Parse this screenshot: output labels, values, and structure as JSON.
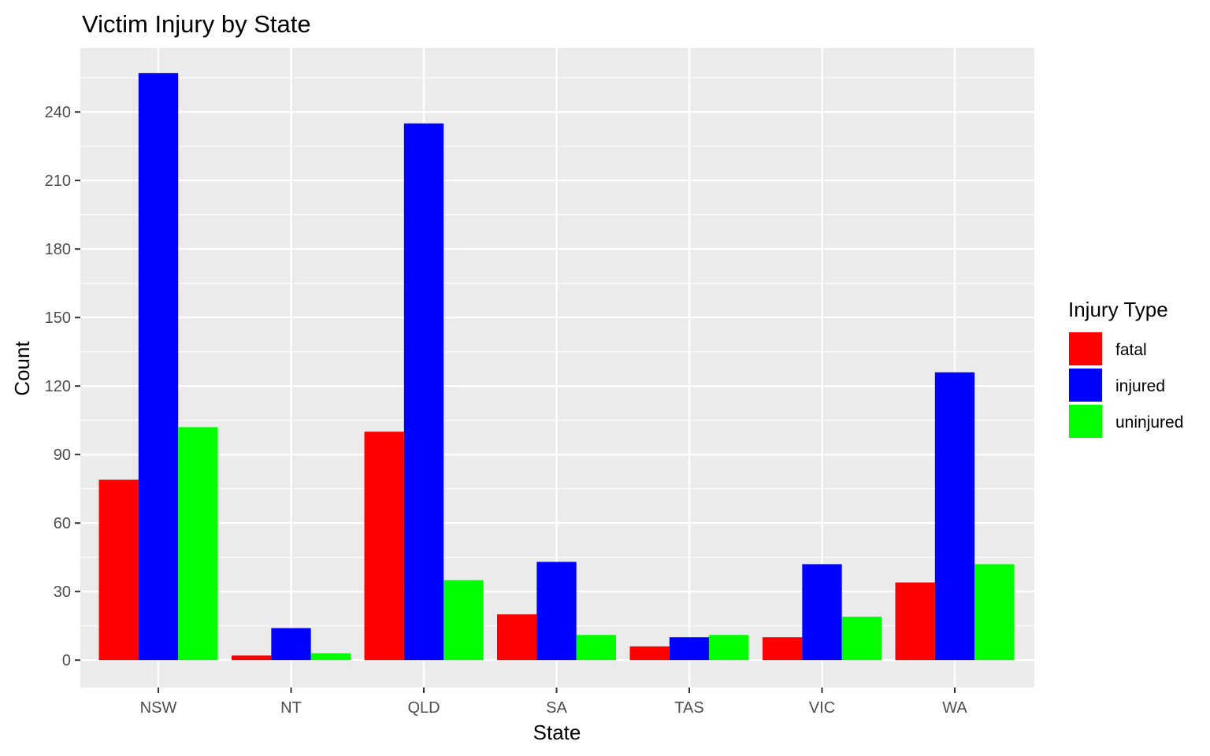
{
  "chart_data": {
    "type": "bar",
    "title": "Victim Injury by State",
    "xlabel": "State",
    "ylabel": "Count",
    "categories": [
      "NSW",
      "NT",
      "QLD",
      "SA",
      "TAS",
      "VIC",
      "WA"
    ],
    "series": [
      {
        "name": "fatal",
        "color": "#ff0000",
        "values": [
          79,
          2,
          100,
          20,
          6,
          10,
          34
        ]
      },
      {
        "name": "injured",
        "color": "#0000ff",
        "values": [
          257,
          14,
          235,
          43,
          10,
          42,
          126
        ]
      },
      {
        "name": "uninjured",
        "color": "#00ff00",
        "values": [
          102,
          3,
          35,
          11,
          11,
          19,
          42
        ]
      }
    ],
    "ylim": [
      -12,
      268
    ],
    "yticks": [
      0,
      30,
      60,
      90,
      120,
      150,
      180,
      210,
      240
    ],
    "legend": {
      "title": "Injury Type",
      "placement": "right"
    },
    "grid": true,
    "panel_background": "#ebebeb",
    "grid_color": "#ffffff"
  }
}
